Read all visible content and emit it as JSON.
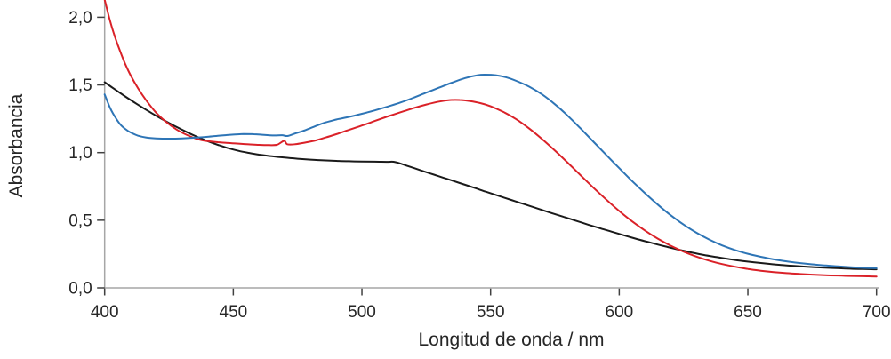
{
  "chart_data": {
    "type": "line",
    "title": "",
    "xlabel": "Longitud de onda / nm",
    "ylabel": "Absorbancia",
    "xlim": [
      400,
      700
    ],
    "ylim": [
      0,
      2.0
    ],
    "grid": false,
    "legend": "none",
    "x_ticks": {
      "values": [
        400,
        450,
        500,
        550,
        600,
        650,
        700
      ],
      "labels": [
        "400",
        "450",
        "500",
        "550",
        "600",
        "650",
        "700"
      ]
    },
    "y_ticks": {
      "values": [
        0,
        0.5,
        1.0,
        1.5,
        2.0
      ],
      "labels": [
        "0,0",
        "0,5",
        "1,0",
        "1,5",
        "2,0"
      ]
    },
    "axis_colors": {
      "axis_line": "#a6a6a6",
      "tick_mark": "#404040",
      "tick_label": "#262626"
    },
    "series": [
      {
        "name": "black",
        "color": "#1a1a1a",
        "points": [
          [
            400,
            1.52
          ],
          [
            404,
            1.467
          ],
          [
            408,
            1.415
          ],
          [
            412,
            1.365
          ],
          [
            416,
            1.318
          ],
          [
            420,
            1.272
          ],
          [
            424,
            1.229
          ],
          [
            428,
            1.189
          ],
          [
            432,
            1.151
          ],
          [
            436,
            1.116
          ],
          [
            440,
            1.085
          ],
          [
            444,
            1.057
          ],
          [
            448,
            1.033
          ],
          [
            452,
            1.013
          ],
          [
            456,
            0.998
          ],
          [
            460,
            0.985
          ],
          [
            465,
            0.973
          ],
          [
            470,
            0.963
          ],
          [
            475,
            0.955
          ],
          [
            480,
            0.948
          ],
          [
            485,
            0.943
          ],
          [
            490,
            0.939
          ],
          [
            495,
            0.936
          ],
          [
            500,
            0.934
          ],
          [
            505,
            0.933
          ],
          [
            510,
            0.932
          ],
          [
            513,
            0.93
          ],
          [
            518,
            0.9
          ],
          [
            523,
            0.868
          ],
          [
            528,
            0.837
          ],
          [
            533,
            0.806
          ],
          [
            538,
            0.775
          ],
          [
            543,
            0.744
          ],
          [
            548,
            0.712
          ],
          [
            553,
            0.681
          ],
          [
            558,
            0.65
          ],
          [
            563,
            0.619
          ],
          [
            568,
            0.588
          ],
          [
            573,
            0.557
          ],
          [
            578,
            0.527
          ],
          [
            583,
            0.497
          ],
          [
            588,
            0.467
          ],
          [
            593,
            0.438
          ],
          [
            598,
            0.41
          ],
          [
            603,
            0.382
          ],
          [
            608,
            0.355
          ],
          [
            613,
            0.33
          ],
          [
            618,
            0.306
          ],
          [
            623,
            0.283
          ],
          [
            628,
            0.262
          ],
          [
            633,
            0.243
          ],
          [
            638,
            0.227
          ],
          [
            643,
            0.212
          ],
          [
            648,
            0.199
          ],
          [
            653,
            0.188
          ],
          [
            658,
            0.178
          ],
          [
            663,
            0.169
          ],
          [
            668,
            0.162
          ],
          [
            673,
            0.156
          ],
          [
            678,
            0.151
          ],
          [
            683,
            0.147
          ],
          [
            688,
            0.143
          ],
          [
            693,
            0.14
          ],
          [
            698,
            0.138
          ],
          [
            700,
            0.137
          ]
        ]
      },
      {
        "name": "red",
        "color": "#da2128",
        "points": [
          [
            400,
            2.13
          ],
          [
            402,
            1.98
          ],
          [
            404,
            1.855
          ],
          [
            406,
            1.75
          ],
          [
            408,
            1.655
          ],
          [
            410,
            1.575
          ],
          [
            413,
            1.475
          ],
          [
            416,
            1.39
          ],
          [
            420,
            1.295
          ],
          [
            424,
            1.225
          ],
          [
            428,
            1.17
          ],
          [
            432,
            1.13
          ],
          [
            436,
            1.1
          ],
          [
            440,
            1.085
          ],
          [
            444,
            1.077
          ],
          [
            448,
            1.071
          ],
          [
            452,
            1.066
          ],
          [
            456,
            1.061
          ],
          [
            460,
            1.057
          ],
          [
            464,
            1.055
          ],
          [
            467,
            1.058
          ],
          [
            469,
            1.08
          ],
          [
            470,
            1.086
          ],
          [
            471,
            1.062
          ],
          [
            474,
            1.062
          ],
          [
            478,
            1.074
          ],
          [
            482,
            1.09
          ],
          [
            486,
            1.112
          ],
          [
            490,
            1.136
          ],
          [
            495,
            1.168
          ],
          [
            500,
            1.2
          ],
          [
            505,
            1.234
          ],
          [
            510,
            1.267
          ],
          [
            515,
            1.298
          ],
          [
            520,
            1.328
          ],
          [
            525,
            1.355
          ],
          [
            530,
            1.377
          ],
          [
            534,
            1.388
          ],
          [
            538,
            1.389
          ],
          [
            542,
            1.381
          ],
          [
            546,
            1.366
          ],
          [
            550,
            1.342
          ],
          [
            555,
            1.3
          ],
          [
            560,
            1.246
          ],
          [
            565,
            1.178
          ],
          [
            570,
            1.1
          ],
          [
            575,
            1.015
          ],
          [
            580,
            0.925
          ],
          [
            585,
            0.832
          ],
          [
            590,
            0.74
          ],
          [
            595,
            0.652
          ],
          [
            600,
            0.568
          ],
          [
            605,
            0.492
          ],
          [
            610,
            0.424
          ],
          [
            615,
            0.364
          ],
          [
            620,
            0.312
          ],
          [
            625,
            0.268
          ],
          [
            630,
            0.231
          ],
          [
            635,
            0.201
          ],
          [
            640,
            0.176
          ],
          [
            645,
            0.156
          ],
          [
            650,
            0.14
          ],
          [
            655,
            0.127
          ],
          [
            660,
            0.117
          ],
          [
            665,
            0.109
          ],
          [
            670,
            0.103
          ],
          [
            675,
            0.098
          ],
          [
            680,
            0.094
          ],
          [
            685,
            0.091
          ],
          [
            690,
            0.088
          ],
          [
            695,
            0.086
          ],
          [
            700,
            0.084
          ]
        ]
      },
      {
        "name": "blue",
        "color": "#2e75b6",
        "points": [
          [
            400,
            1.43
          ],
          [
            402,
            1.335
          ],
          [
            404,
            1.265
          ],
          [
            406,
            1.21
          ],
          [
            408,
            1.175
          ],
          [
            410,
            1.15
          ],
          [
            413,
            1.125
          ],
          [
            416,
            1.112
          ],
          [
            420,
            1.105
          ],
          [
            425,
            1.103
          ],
          [
            430,
            1.105
          ],
          [
            435,
            1.11
          ],
          [
            440,
            1.117
          ],
          [
            445,
            1.126
          ],
          [
            450,
            1.133
          ],
          [
            454,
            1.137
          ],
          [
            458,
            1.136
          ],
          [
            462,
            1.131
          ],
          [
            466,
            1.127
          ],
          [
            469,
            1.129
          ],
          [
            471,
            1.123
          ],
          [
            474,
            1.141
          ],
          [
            478,
            1.166
          ],
          [
            482,
            1.196
          ],
          [
            486,
            1.224
          ],
          [
            490,
            1.244
          ],
          [
            495,
            1.264
          ],
          [
            500,
            1.287
          ],
          [
            505,
            1.312
          ],
          [
            510,
            1.34
          ],
          [
            515,
            1.37
          ],
          [
            520,
            1.405
          ],
          [
            525,
            1.443
          ],
          [
            530,
            1.48
          ],
          [
            535,
            1.517
          ],
          [
            540,
            1.55
          ],
          [
            545,
            1.572
          ],
          [
            548,
            1.576
          ],
          [
            552,
            1.572
          ],
          [
            556,
            1.557
          ],
          [
            560,
            1.53
          ],
          [
            565,
            1.487
          ],
          [
            570,
            1.43
          ],
          [
            575,
            1.357
          ],
          [
            580,
            1.272
          ],
          [
            585,
            1.178
          ],
          [
            590,
            1.08
          ],
          [
            595,
            0.982
          ],
          [
            600,
            0.885
          ],
          [
            605,
            0.79
          ],
          [
            610,
            0.7
          ],
          [
            615,
            0.615
          ],
          [
            620,
            0.537
          ],
          [
            625,
            0.468
          ],
          [
            630,
            0.408
          ],
          [
            635,
            0.357
          ],
          [
            640,
            0.314
          ],
          [
            645,
            0.28
          ],
          [
            650,
            0.252
          ],
          [
            655,
            0.23
          ],
          [
            660,
            0.211
          ],
          [
            665,
            0.196
          ],
          [
            670,
            0.184
          ],
          [
            675,
            0.174
          ],
          [
            680,
            0.166
          ],
          [
            685,
            0.159
          ],
          [
            690,
            0.153
          ],
          [
            695,
            0.148
          ],
          [
            700,
            0.145
          ]
        ]
      }
    ]
  }
}
